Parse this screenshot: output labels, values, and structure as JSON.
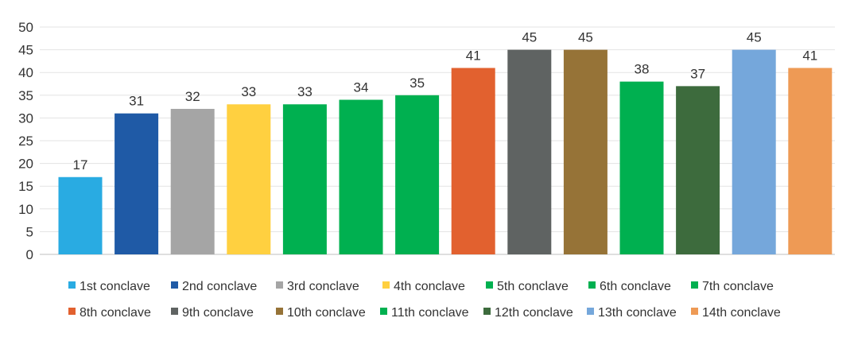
{
  "chart_data": {
    "type": "bar",
    "title": "",
    "xlabel": "",
    "ylabel": "",
    "ylim": [
      0,
      50
    ],
    "yticks": [
      0,
      5,
      10,
      15,
      20,
      25,
      30,
      35,
      40,
      45,
      50
    ],
    "grid": true,
    "legend_position": "bottom",
    "categories": [
      "1st conclave",
      "2nd conclave",
      "3rd conclave",
      "4th conclave",
      "5th conclave",
      "6th conclave",
      "7th conclave",
      "8th conclave",
      "9th conclave",
      "10th conclave",
      "11th conclave",
      "12th conclave",
      "13th conclave",
      "14th conclave"
    ],
    "values": [
      17,
      31,
      32,
      33,
      33,
      34,
      35,
      41,
      45,
      45,
      38,
      37,
      45,
      41
    ],
    "colors": [
      "#29abe2",
      "#1f5aa6",
      "#a5a5a5",
      "#ffd040",
      "#00b050",
      "#00b050",
      "#00b050",
      "#e2612f",
      "#5f6362",
      "#967337",
      "#00b050",
      "#3d6b3d",
      "#75a7db",
      "#ee9a55"
    ]
  }
}
